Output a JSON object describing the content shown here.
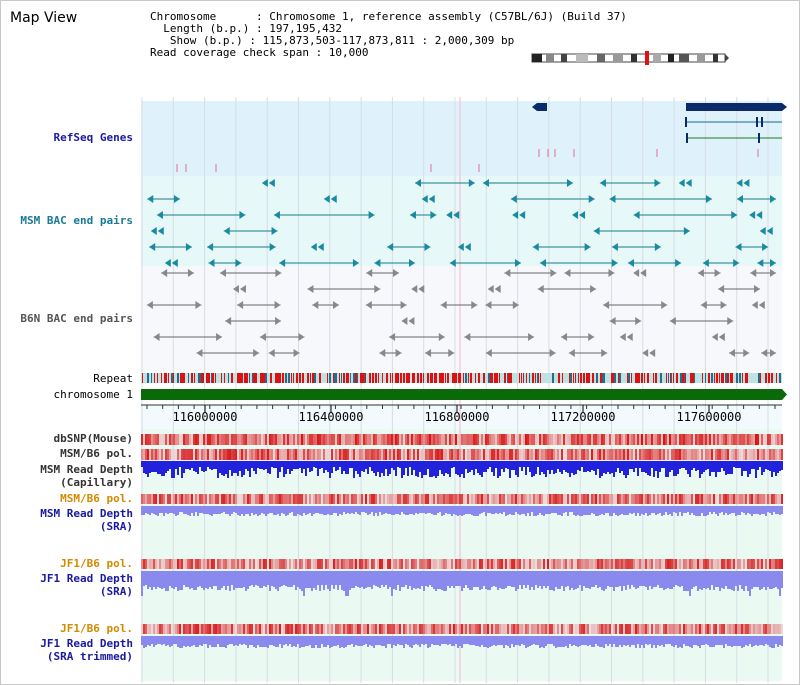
{
  "header": {
    "title": "Map View",
    "info_lines": [
      "Chromosome      : Chromosome 1, reference assembly (C57BL/6J) (Build 37)",
      "  Length (b.p.) : 197,195,432",
      "   Show (b.p.) : 115,873,503-117,873,811 : 2,000,309 bp",
      "Read coverage check span : 10,000"
    ]
  },
  "tracks": {
    "refseq": {
      "label": "RefSeq Genes",
      "color": "#1a1aa0"
    },
    "msm_bac": {
      "label": "MSM BAC end pairs",
      "color": "#1a7a96"
    },
    "b6n_bac": {
      "label": "B6N BAC end pairs",
      "color": "#555555"
    },
    "repeat": {
      "label": "Repeat"
    },
    "chromosome": {
      "label": "chromosome 1"
    },
    "axis": {
      "ticks": [
        "116000000",
        "116400000",
        "116800000",
        "117200000",
        "117600000"
      ]
    },
    "dbsnp": {
      "label": "dbSNP(Mouse)",
      "color": "#333333"
    },
    "msm_pol_cap": {
      "label": "MSM/B6 pol.",
      "color": "#333333"
    },
    "msm_depth_cap": {
      "label_lines": [
        "MSM Read Depth",
        "(Capillary)"
      ],
      "color": "#333333"
    },
    "msm_pol_sra": {
      "label": "MSM/B6 pol.",
      "color": "#d28a00"
    },
    "msm_depth_sra": {
      "label_lines": [
        "MSM Read Depth",
        "(SRA)"
      ],
      "color": "#1a1aa0"
    },
    "jf1_pol_sra": {
      "label": "JF1/B6 pol.",
      "color": "#d28a00"
    },
    "jf1_depth_sra": {
      "label_lines": [
        "JF1 Read Depth",
        "(SRA)"
      ],
      "color": "#1a1aa0"
    },
    "jf1_pol_trim": {
      "label": "JF1/B6 pol.",
      "color": "#d28a00"
    },
    "jf1_depth_trim": {
      "label_lines": [
        "JF1 Read Depth",
        "(SRA trimmed)"
      ],
      "color": "#1a1aa0"
    }
  },
  "colors": {
    "refseq_bg": "#dff2fb",
    "bac_bg": "#e6f8f8",
    "depth_bg": "#eafaf2",
    "cap_depth": "#2222dd",
    "sra_depth": "#8a8aee",
    "repeat": "#dd1111",
    "chromosome": "#0a6a0a"
  }
}
